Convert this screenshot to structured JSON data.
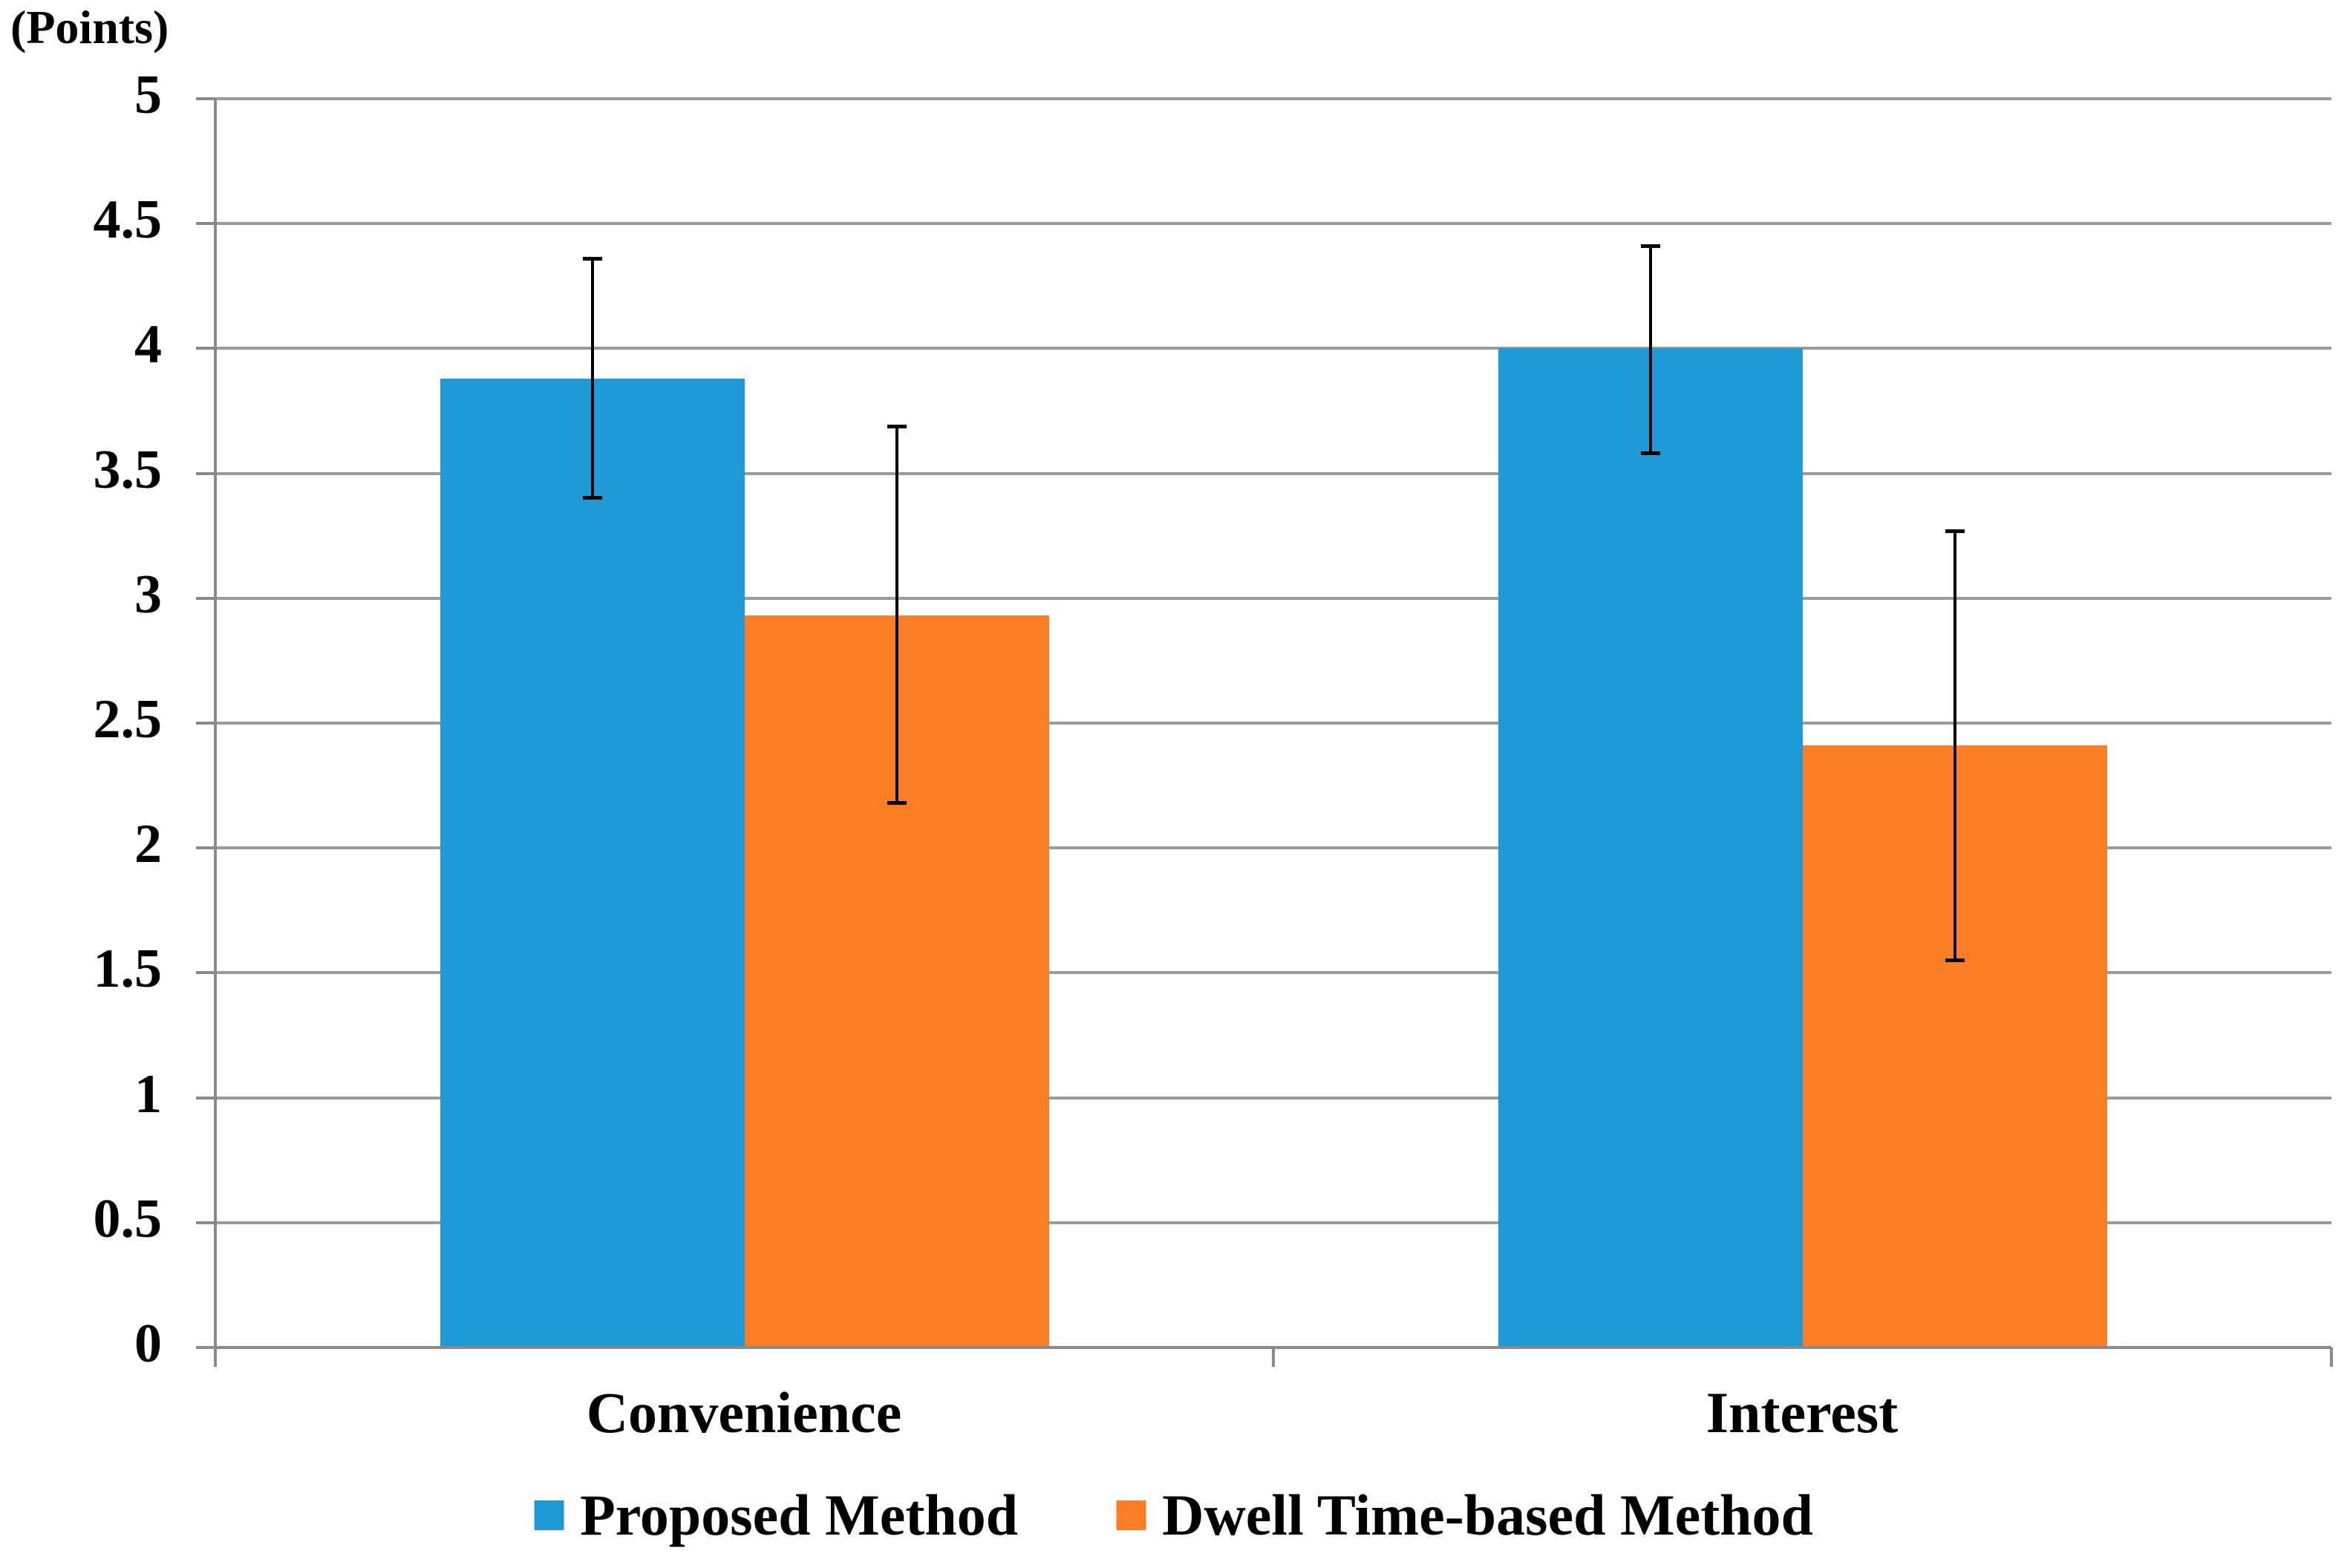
{
  "y_axis_title": "(Points)",
  "chart_data": {
    "type": "bar",
    "title": "",
    "ylabel": "(Points)",
    "xlabel": "",
    "categories": [
      "Convenience",
      "Interest"
    ],
    "series": [
      {
        "name": "Proposed Method",
        "color": "#1E9BD7",
        "values": [
          3.88,
          4.0
        ],
        "error_low": [
          3.4,
          3.58
        ],
        "error_high": [
          4.36,
          4.41
        ]
      },
      {
        "name": "Dwell Time-based Method",
        "color": "#FB7D26",
        "values": [
          2.93,
          2.41
        ],
        "error_low": [
          2.18,
          1.55
        ],
        "error_high": [
          3.69,
          3.27
        ]
      }
    ],
    "ylim": [
      0,
      5
    ],
    "ytick_step": 0.5,
    "ytick_labels": [
      "5",
      "4.5",
      "4",
      "3.5",
      "3",
      "2.5",
      "2",
      "1.5",
      "1",
      "0.5",
      "0"
    ],
    "grid": true,
    "error_bars": true,
    "legend_position": "bottom"
  },
  "colors": {
    "grid": "#9B9B9B",
    "axis": "#8A8A8A",
    "error_bar": "#000000",
    "background": "#FFFFFF",
    "text": "#000000"
  }
}
